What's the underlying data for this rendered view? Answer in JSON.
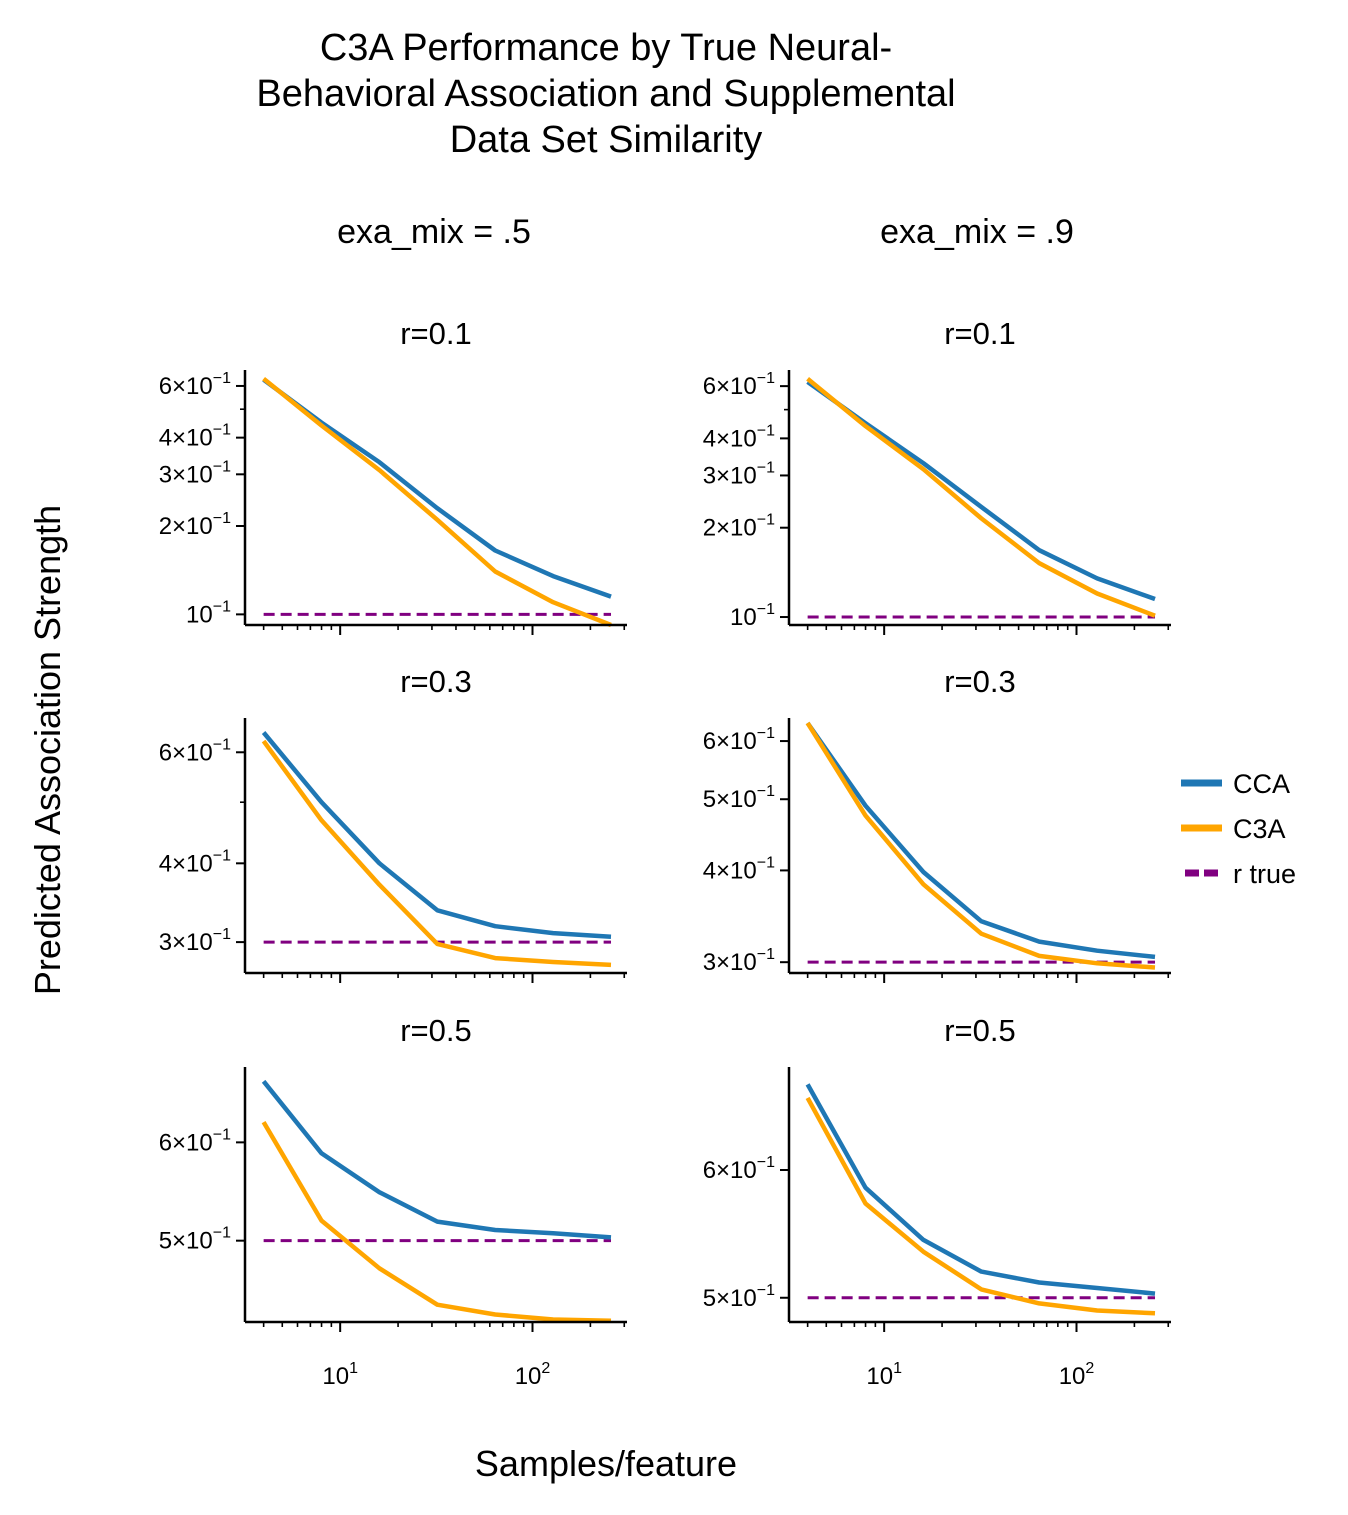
{
  "title_lines": [
    "C3A Performance by True Neural-",
    "Behavioral Association and Supplemental",
    "Data Set Similarity"
  ],
  "columns": [
    "exa_mix = .5",
    "exa_mix = .9"
  ],
  "xlabel": "Samples/feature",
  "ylabel": "Predicted Association Strength",
  "colors": {
    "cca": "#1f77b4",
    "c3a": "#ffa500",
    "r_true": "#800080"
  },
  "legend": [
    {
      "label": "CCA",
      "style": "solid",
      "color_key": "cca"
    },
    {
      "label": "C3A",
      "style": "solid",
      "color_key": "c3a"
    },
    {
      "label": "r true",
      "style": "dashed",
      "color_key": "r_true"
    }
  ],
  "chart_data": [
    {
      "type": "line",
      "title": "r=0.1",
      "column": "exa_mix = .5",
      "row": 0,
      "xscale": "log",
      "yscale": "log",
      "xlim": [
        3.2,
        310
      ],
      "ylim": [
        0.092,
        0.68
      ],
      "x": [
        4,
        8,
        16,
        32,
        64,
        128,
        256
      ],
      "series": [
        {
          "name": "CCA",
          "values": [
            0.63,
            0.45,
            0.33,
            0.23,
            0.165,
            0.135,
            0.115
          ]
        },
        {
          "name": "C3A",
          "values": [
            0.635,
            0.44,
            0.31,
            0.21,
            0.14,
            0.11,
            0.092
          ]
        }
      ],
      "r_true": 0.1,
      "yticks": [
        {
          "value": 0.6,
          "mant": "6",
          "exp": "−1"
        },
        {
          "value": 0.4,
          "mant": "4",
          "exp": "−1"
        },
        {
          "value": 0.3,
          "mant": "3",
          "exp": "−1"
        },
        {
          "value": 0.2,
          "mant": "2",
          "exp": "−1"
        },
        {
          "value": 0.1,
          "mant": "",
          "exp": "−1"
        }
      ],
      "xticks": [
        {
          "value": 10,
          "mant": "",
          "exp": "1"
        },
        {
          "value": 100,
          "mant": "",
          "exp": "2"
        }
      ]
    },
    {
      "type": "line",
      "title": "r=0.1",
      "column": "exa_mix = .9",
      "row": 0,
      "xscale": "log",
      "yscale": "log",
      "xlim": [
        3.2,
        310
      ],
      "ylim": [
        0.094,
        0.68
      ],
      "x": [
        4,
        8,
        16,
        32,
        64,
        128,
        256
      ],
      "series": [
        {
          "name": "CCA",
          "values": [
            0.62,
            0.45,
            0.33,
            0.235,
            0.168,
            0.135,
            0.115
          ]
        },
        {
          "name": "C3A",
          "values": [
            0.635,
            0.44,
            0.315,
            0.215,
            0.152,
            0.12,
            0.101
          ]
        }
      ],
      "r_true": 0.1,
      "yticks": [
        {
          "value": 0.6,
          "mant": "6",
          "exp": "−1"
        },
        {
          "value": 0.4,
          "mant": "4",
          "exp": "−1"
        },
        {
          "value": 0.3,
          "mant": "3",
          "exp": "−1"
        },
        {
          "value": 0.2,
          "mant": "2",
          "exp": "−1"
        },
        {
          "value": 0.1,
          "mant": "",
          "exp": "−1"
        }
      ],
      "xticks": [
        {
          "value": 10,
          "mant": "",
          "exp": "1"
        },
        {
          "value": 100,
          "mant": "",
          "exp": "2"
        }
      ]
    },
    {
      "type": "line",
      "title": "r=0.3",
      "column": "exa_mix = .5",
      "row": 1,
      "xscale": "log",
      "yscale": "log",
      "xlim": [
        3.2,
        310
      ],
      "ylim": [
        0.268,
        0.68
      ],
      "x": [
        4,
        8,
        16,
        32,
        64,
        128,
        256
      ],
      "series": [
        {
          "name": "CCA",
          "values": [
            0.645,
            0.5,
            0.4,
            0.337,
            0.318,
            0.31,
            0.306
          ]
        },
        {
          "name": "C3A",
          "values": [
            0.625,
            0.468,
            0.37,
            0.298,
            0.283,
            0.279,
            0.276
          ]
        }
      ],
      "r_true": 0.3,
      "yticks": [
        {
          "value": 0.6,
          "mant": "6",
          "exp": "−1"
        },
        {
          "value": 0.4,
          "mant": "4",
          "exp": "−1"
        },
        {
          "value": 0.3,
          "mant": "3",
          "exp": "−1"
        }
      ],
      "xticks": [
        {
          "value": 10,
          "mant": "",
          "exp": "1"
        },
        {
          "value": 100,
          "mant": "",
          "exp": "2"
        }
      ]
    },
    {
      "type": "line",
      "title": "r=0.3",
      "column": "exa_mix = .9",
      "row": 1,
      "xscale": "log",
      "yscale": "log",
      "xlim": [
        3.2,
        310
      ],
      "ylim": [
        0.29,
        0.645
      ],
      "x": [
        4,
        8,
        16,
        32,
        64,
        128,
        256
      ],
      "series": [
        {
          "name": "CCA",
          "values": [
            0.635,
            0.49,
            0.398,
            0.341,
            0.32,
            0.311,
            0.305
          ]
        },
        {
          "name": "C3A",
          "values": [
            0.635,
            0.475,
            0.383,
            0.328,
            0.306,
            0.299,
            0.295
          ]
        }
      ],
      "r_true": 0.3,
      "yticks": [
        {
          "value": 0.6,
          "mant": "6",
          "exp": "−1"
        },
        {
          "value": 0.5,
          "mant": "5",
          "exp": "−1"
        },
        {
          "value": 0.4,
          "mant": "4",
          "exp": "−1"
        },
        {
          "value": 0.3,
          "mant": "3",
          "exp": "−1"
        }
      ],
      "xticks": [
        {
          "value": 10,
          "mant": "",
          "exp": "1"
        },
        {
          "value": 100,
          "mant": "",
          "exp": "2"
        }
      ]
    },
    {
      "type": "line",
      "title": "r=0.5",
      "column": "exa_mix = .5",
      "row": 2,
      "xscale": "log",
      "yscale": "log",
      "xlim": [
        3.2,
        310
      ],
      "ylim": [
        0.43,
        0.69
      ],
      "x": [
        4,
        8,
        16,
        32,
        64,
        128,
        256
      ],
      "series": [
        {
          "name": "CCA",
          "values": [
            0.672,
            0.588,
            0.547,
            0.518,
            0.51,
            0.507,
            0.503
          ]
        },
        {
          "name": "C3A",
          "values": [
            0.623,
            0.519,
            0.475,
            0.444,
            0.436,
            0.432,
            0.431
          ]
        }
      ],
      "r_true": 0.5,
      "yticks": [
        {
          "value": 0.6,
          "mant": "6",
          "exp": "−1"
        },
        {
          "value": 0.5,
          "mant": "5",
          "exp": "−1"
        }
      ],
      "xticks": [
        {
          "value": 10,
          "mant": "",
          "exp": "1"
        },
        {
          "value": 100,
          "mant": "",
          "exp": "2"
        }
      ]
    },
    {
      "type": "line",
      "title": "r=0.5",
      "column": "exa_mix = .9",
      "row": 2,
      "xscale": "log",
      "yscale": "log",
      "xlim": [
        3.2,
        310
      ],
      "ylim": [
        0.483,
        0.695
      ],
      "x": [
        4,
        8,
        16,
        32,
        64,
        128,
        256
      ],
      "series": [
        {
          "name": "CCA",
          "values": [
            0.678,
            0.585,
            0.543,
            0.519,
            0.511,
            0.507,
            0.503
          ]
        },
        {
          "name": "C3A",
          "values": [
            0.665,
            0.572,
            0.534,
            0.506,
            0.496,
            0.491,
            0.489
          ]
        }
      ],
      "r_true": 0.5,
      "yticks": [
        {
          "value": 0.6,
          "mant": "6",
          "exp": "−1"
        },
        {
          "value": 0.5,
          "mant": "5",
          "exp": "−1"
        }
      ],
      "xticks": [
        {
          "value": 10,
          "mant": "",
          "exp": "1"
        },
        {
          "value": 100,
          "mant": "",
          "exp": "2"
        }
      ]
    }
  ]
}
